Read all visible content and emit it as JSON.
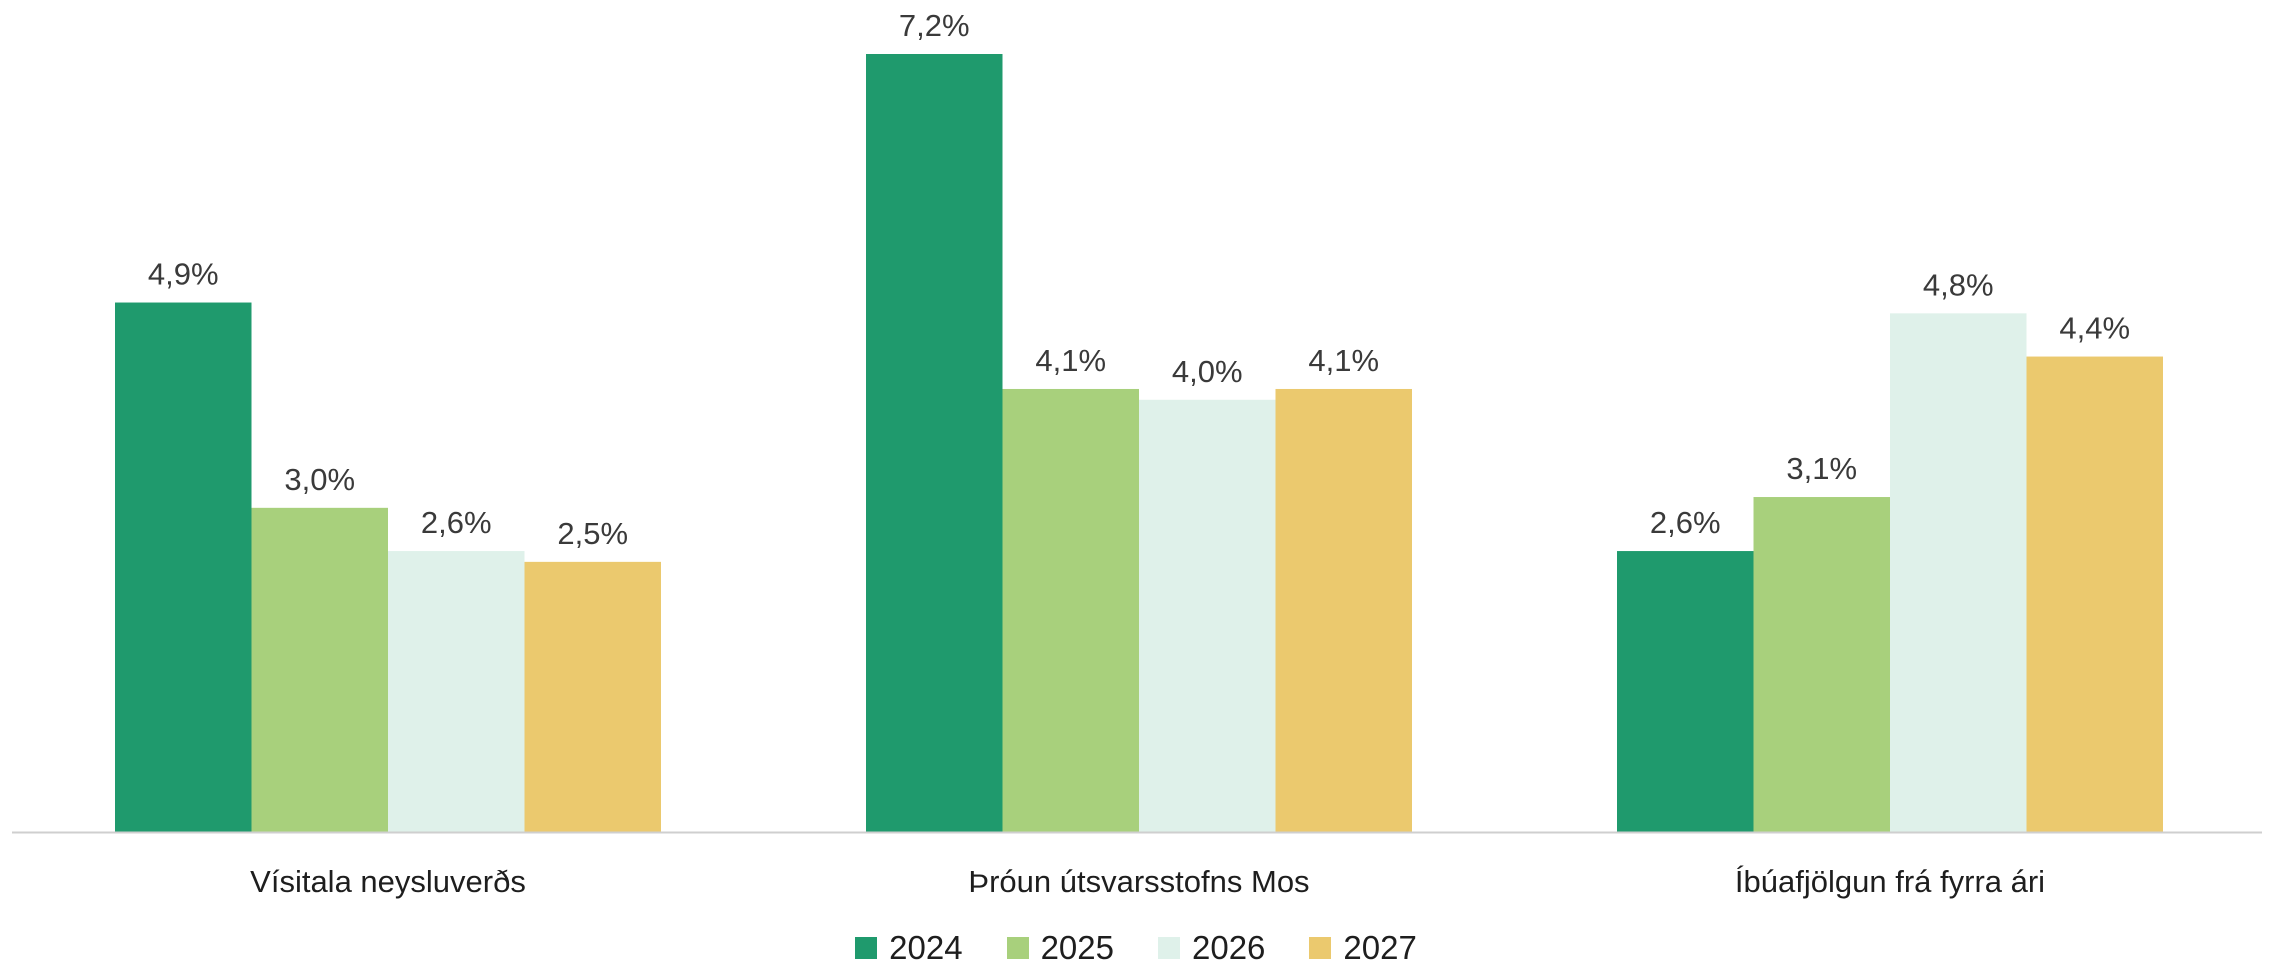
{
  "chart_data": {
    "type": "bar",
    "categories": [
      "Vísitala neysluverðs",
      "Þróun útsvarsstofns Mos",
      "Íbúafjölgun frá fyrra ári"
    ],
    "series": [
      {
        "name": "2024",
        "values": [
          4.9,
          7.2,
          2.6
        ],
        "labels": [
          "4,9%",
          "7,2%",
          "2,6%"
        ],
        "color": "#1f9a6d"
      },
      {
        "name": "2025",
        "values": [
          3.0,
          4.1,
          3.1
        ],
        "labels": [
          "3,0%",
          "4,1%",
          "3,1%"
        ],
        "color": "#a8d07c"
      },
      {
        "name": "2026",
        "values": [
          2.6,
          4.0,
          4.8
        ],
        "labels": [
          "2,6%",
          "4,0%",
          "4,8%"
        ],
        "color": "#dff1ea"
      },
      {
        "name": "2027",
        "values": [
          2.5,
          4.1,
          4.4
        ],
        "labels": [
          "2,5%",
          "4,1%",
          "4,4%"
        ],
        "color": "#ebc96e"
      }
    ],
    "title": "",
    "xlabel": "",
    "ylabel": "",
    "ylim": [
      0,
      7.2
    ],
    "grid": false,
    "legend_position": "bottom-center",
    "axis_color": "#cfcfcf"
  }
}
